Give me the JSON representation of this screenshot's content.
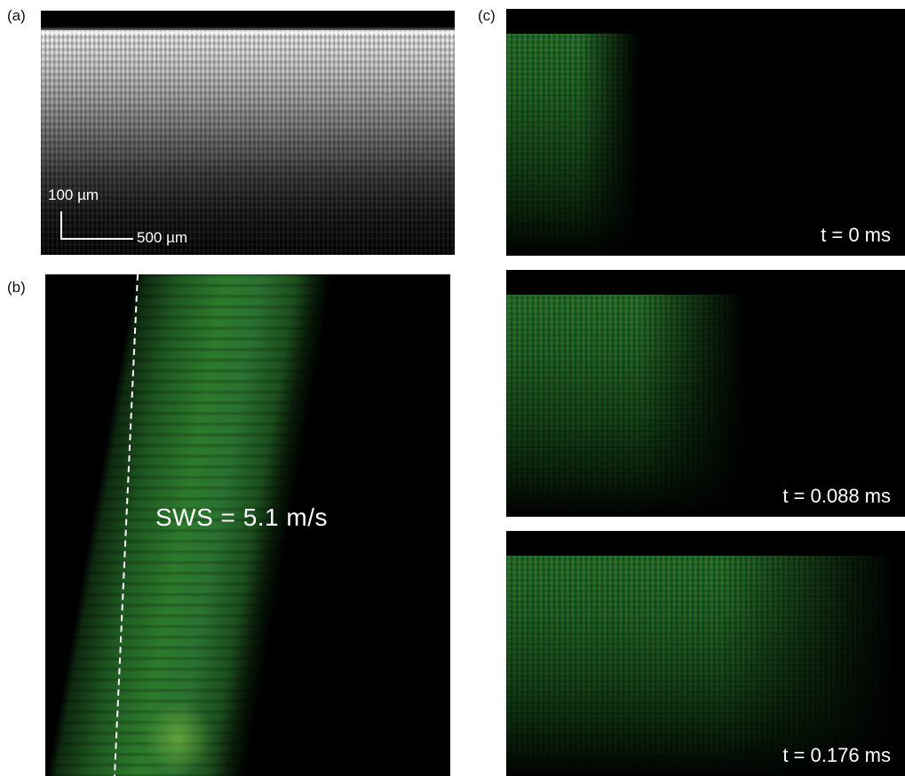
{
  "panel_a": {
    "letter": "(a)",
    "scalebar_vertical": "100 µm",
    "scalebar_horizontal": "500 µm"
  },
  "panel_b": {
    "letter": "(b)",
    "annotation": "SWS = 5.1 m/s"
  },
  "panel_c": {
    "letter": "(c)",
    "frames": [
      {
        "time": "t = 0 ms"
      },
      {
        "time": "t = 0.088 ms"
      },
      {
        "time": "t = 0.176 ms"
      }
    ]
  },
  "colors": {
    "wave_green": "#2c7a2c",
    "background": "#000000",
    "label_text": "#ffffff"
  }
}
